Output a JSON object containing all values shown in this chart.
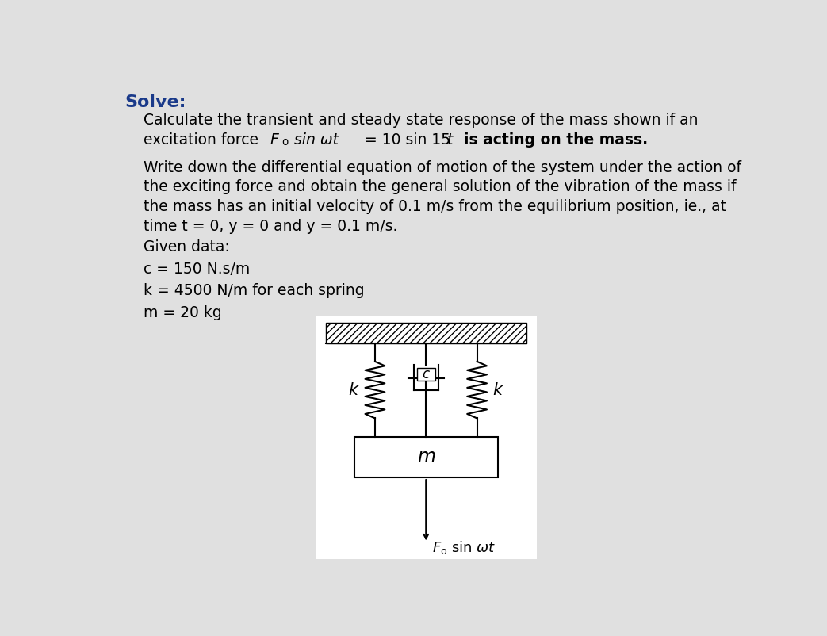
{
  "background_color": "#e0e0e0",
  "white_box_color": "#ffffff",
  "title": "Solve:",
  "title_color": "#1a3a8a",
  "title_fontsize": 16,
  "body_fontsize": 13.5,
  "line1": "Calculate the transient and steady state response of the mass shown if an",
  "para2_lines": [
    "Write down the differential equation of motion of the system under the action of",
    "the exciting force and obtain the general solution of the vibration of the mass if",
    "the mass has an initial velocity of 0.1 m/s from the equilibrium position, ie., at",
    "time t = 0, y = 0 and y = 0.1 m/s."
  ],
  "given_label": "Given data:",
  "c_val": "c = 150 N.s/m",
  "k_val": "k = 4500 N/m for each spring",
  "m_val": "m = 20 kg"
}
